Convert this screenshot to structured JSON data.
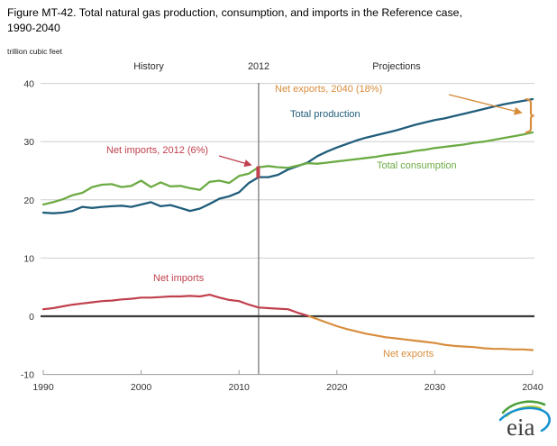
{
  "header": {
    "title": "Figure MT-42. Total natural gas production, consumption, and imports in the Reference case,\n1990-2040",
    "unit_label": "trillion cubic feet"
  },
  "chart_data": {
    "type": "line",
    "title": "Figure MT-42. Total natural gas production, consumption, and imports in the Reference case, 1990-2040",
    "ylabel": "trillion cubic feet",
    "xlabel": "",
    "xlim": [
      1990,
      2040
    ],
    "ylim": [
      -10,
      40
    ],
    "xticks": [
      1990,
      2000,
      2010,
      2020,
      2030,
      2040
    ],
    "yticks": [
      -10,
      0,
      10,
      20,
      30,
      40
    ],
    "grid": "horizontal-only",
    "legend_position": "inline-labels",
    "divider_year": 2012,
    "x": [
      1990,
      1991,
      1992,
      1993,
      1994,
      1995,
      1996,
      1997,
      1998,
      1999,
      2000,
      2001,
      2002,
      2003,
      2004,
      2005,
      2006,
      2007,
      2008,
      2009,
      2010,
      2011,
      2012,
      2013,
      2014,
      2015,
      2016,
      2017,
      2018,
      2019,
      2020,
      2021,
      2022,
      2023,
      2024,
      2025,
      2026,
      2027,
      2028,
      2029,
      2030,
      2031,
      2032,
      2033,
      2034,
      2035,
      2036,
      2037,
      2038,
      2039,
      2040
    ],
    "series": [
      {
        "name": "Total production",
        "color": "#205d7b",
        "values": [
          17.8,
          17.7,
          17.8,
          18.1,
          18.8,
          18.6,
          18.8,
          18.9,
          19.0,
          18.8,
          19.2,
          19.6,
          18.9,
          19.1,
          18.6,
          18.1,
          18.5,
          19.3,
          20.2,
          20.6,
          21.3,
          22.9,
          23.9,
          23.9,
          24.3,
          25.2,
          25.8,
          26.4,
          27.5,
          28.3,
          29.0,
          29.6,
          30.2,
          30.7,
          31.1,
          31.5,
          31.9,
          32.4,
          32.9,
          33.3,
          33.7,
          34.0,
          34.4,
          34.8,
          35.2,
          35.6,
          36.0,
          36.4,
          36.7,
          37.0,
          37.3
        ]
      },
      {
        "name": "Total consumption",
        "color": "#6cab44",
        "values": [
          19.2,
          19.6,
          20.1,
          20.8,
          21.2,
          22.2,
          22.6,
          22.7,
          22.2,
          22.4,
          23.3,
          22.2,
          23.0,
          22.3,
          22.4,
          22.0,
          21.7,
          23.1,
          23.3,
          22.9,
          24.1,
          24.5,
          25.6,
          25.8,
          25.6,
          25.5,
          25.9,
          26.3,
          26.2,
          26.4,
          26.6,
          26.8,
          27.0,
          27.2,
          27.4,
          27.7,
          27.9,
          28.1,
          28.4,
          28.6,
          28.9,
          29.1,
          29.3,
          29.5,
          29.8,
          30.0,
          30.3,
          30.6,
          30.9,
          31.2,
          31.6
        ]
      },
      {
        "name": "Net imports / Net exports",
        "color_positive": "#c0404d",
        "color_negative": "#d78d3d",
        "values": [
          1.2,
          1.4,
          1.7,
          2.0,
          2.2,
          2.4,
          2.6,
          2.7,
          2.9,
          3.0,
          3.2,
          3.2,
          3.3,
          3.4,
          3.4,
          3.5,
          3.4,
          3.7,
          3.2,
          2.8,
          2.6,
          2.0,
          1.5,
          1.4,
          1.3,
          1.2,
          0.6,
          0.1,
          -0.5,
          -1.1,
          -1.7,
          -2.2,
          -2.6,
          -3.0,
          -3.3,
          -3.6,
          -3.8,
          -4.0,
          -4.2,
          -4.4,
          -4.6,
          -4.9,
          -5.1,
          -5.2,
          -5.3,
          -5.5,
          -5.6,
          -5.6,
          -5.7,
          -5.7,
          -5.8
        ]
      }
    ],
    "period_labels": {
      "history": "History",
      "divider": "2012",
      "projections": "Projections"
    },
    "line_labels": {
      "production": "Total production",
      "consumption": "Total consumption",
      "net_imports": "Net imports",
      "net_exports": "Net exports"
    },
    "annotations": {
      "net_exports_2040": "Net exports, 2040 (18%)",
      "net_imports_2012": "Net imports, 2012 (6%)"
    },
    "annotation_values": {
      "net_imports_2012_pct": "6%",
      "net_exports_2040_pct": "18%"
    },
    "colors": {
      "production": "#205d7b",
      "consumption": "#6cab44",
      "net_imports": "#c0404d",
      "net_exports": "#d78d3d",
      "gridline": "#cdcdcd",
      "zero_line": "#3c3c3c"
    }
  },
  "logo": {
    "text": "eia",
    "colors": {
      "green": "#4ea03c",
      "yellow": "#c9d32b",
      "blue": "#1792d0"
    }
  }
}
